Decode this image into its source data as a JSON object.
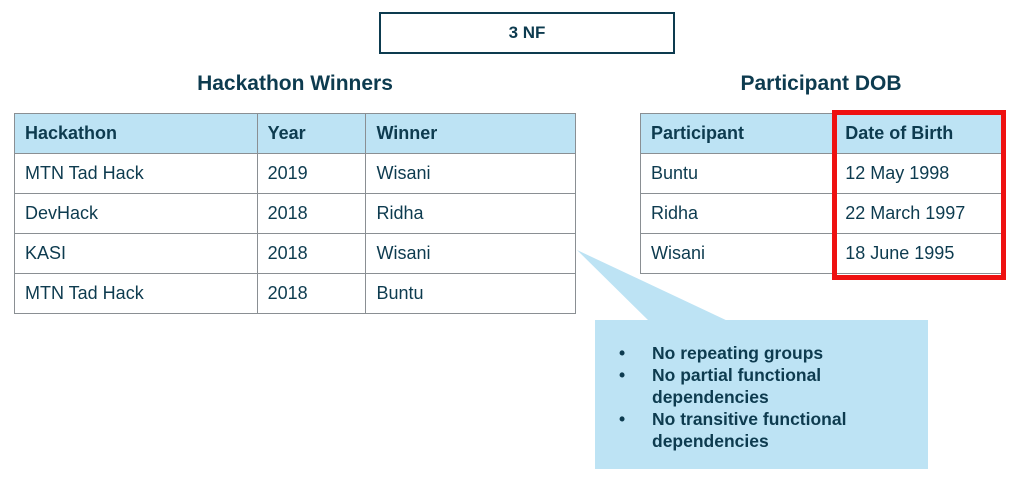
{
  "title": "3 NF",
  "left_table": {
    "heading": "Hackathon Winners",
    "columns": [
      "Hackathon",
      "Year",
      "Winner"
    ],
    "rows": [
      [
        "MTN Tad Hack",
        "2019",
        "Wisani"
      ],
      [
        "DevHack",
        "2018",
        "Ridha"
      ],
      [
        "KASI",
        "2018",
        "Wisani"
      ],
      [
        "MTN Tad Hack",
        "2018",
        "Buntu"
      ]
    ]
  },
  "right_table": {
    "heading": "Participant DOB",
    "columns": [
      "Participant",
      "Date of Birth"
    ],
    "rows": [
      [
        "Buntu",
        "12 May 1998"
      ],
      [
        "Ridha",
        "22 March 1997"
      ],
      [
        "Wisani",
        "18 June 1995"
      ]
    ]
  },
  "callout": {
    "bullet": "•",
    "items": [
      "No repeating groups",
      "No partial functional dependencies",
      "No transitive functional dependencies"
    ]
  },
  "colors": {
    "text": "#0d3b4f",
    "header_fill": "#bde3f4",
    "callout_fill": "#bde3f4",
    "highlight": "#ee1111",
    "border": "#8a8f93"
  }
}
